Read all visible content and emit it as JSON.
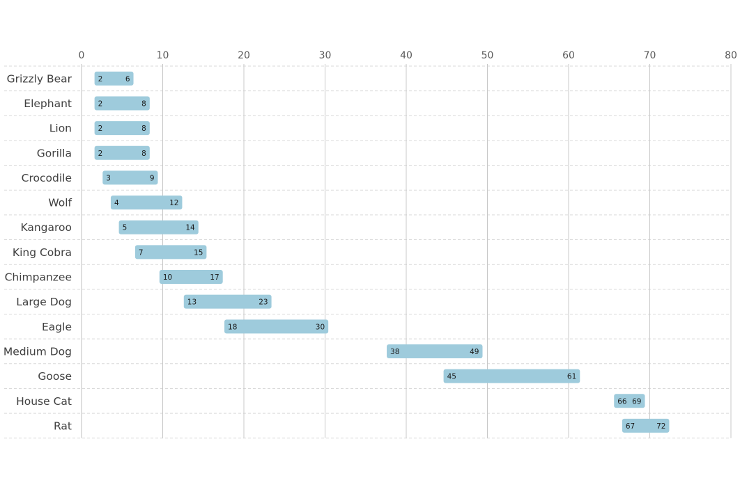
{
  "chart_data": {
    "type": "bar",
    "orientation": "horizontal",
    "subtype": "range",
    "title": "",
    "xlabel": "",
    "ylabel": "",
    "xlim": [
      0,
      80
    ],
    "x_ticks": [
      0,
      10,
      20,
      30,
      40,
      50,
      60,
      70,
      80
    ],
    "grid": {
      "vertical": "solid",
      "horizontal": "dashed"
    },
    "legend": "none",
    "bar_color": "#9ecbdc",
    "categories": [
      "Grizzly Bear",
      "Elephant",
      "Lion",
      "Gorilla",
      "Crocodile",
      "Wolf",
      "Kangaroo",
      "King Cobra",
      "Chimpanzee",
      "Large Dog",
      "Eagle",
      "Medium Dog",
      "Goose",
      "House Cat",
      "Rat"
    ],
    "series": [
      {
        "start": [
          2,
          2,
          2,
          2,
          3,
          4,
          5,
          7,
          10,
          13,
          18,
          38,
          45,
          66,
          67
        ],
        "end": [
          6,
          8,
          8,
          8,
          9,
          12,
          14,
          15,
          17,
          23,
          30,
          49,
          61,
          69,
          72
        ]
      }
    ]
  }
}
